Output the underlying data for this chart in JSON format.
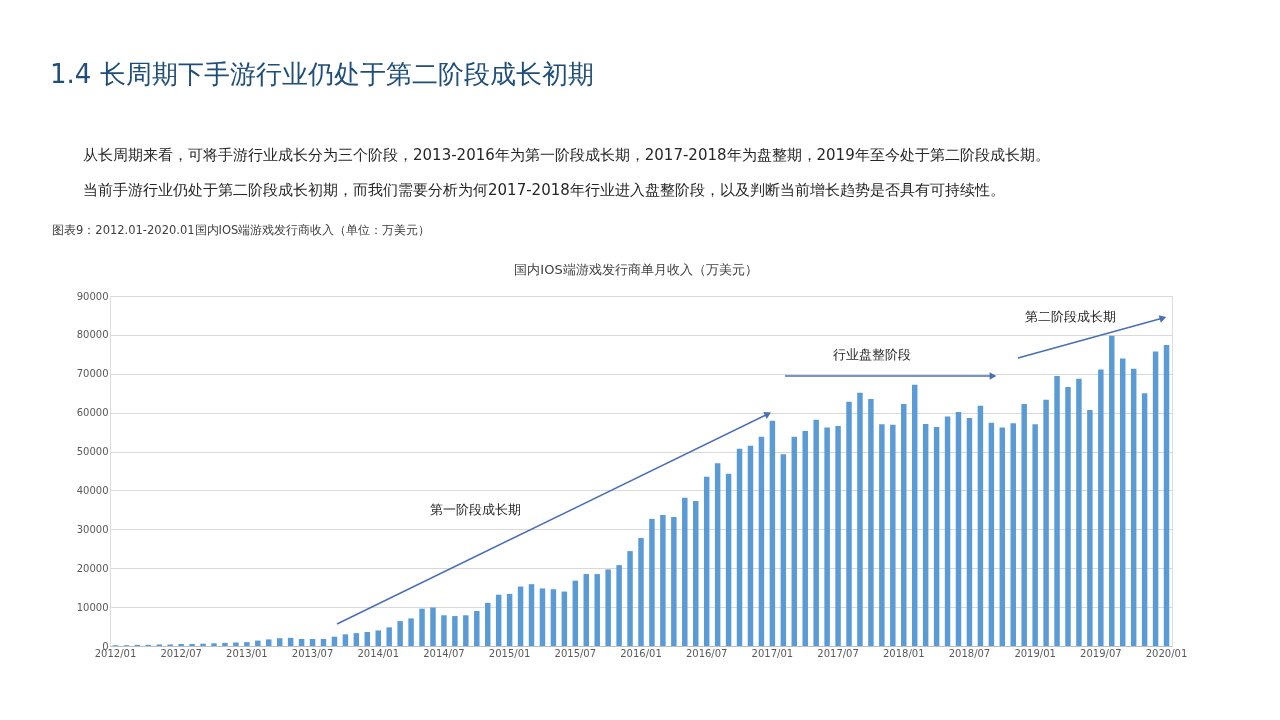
{
  "chart_data": {
    "type": "bar",
    "title": "国内IOS端游戏发行商单月收入（万美元）",
    "categories": [
      "2012/01",
      null,
      null,
      null,
      null,
      null,
      "2012/07",
      null,
      null,
      null,
      null,
      null,
      "2013/01",
      null,
      null,
      null,
      null,
      null,
      "2013/07",
      null,
      null,
      null,
      null,
      null,
      "2014/01",
      null,
      null,
      null,
      null,
      null,
      "2014/07",
      null,
      null,
      null,
      null,
      null,
      "2015/01",
      null,
      null,
      null,
      null,
      null,
      "2015/07",
      null,
      null,
      null,
      null,
      null,
      "2016/01",
      null,
      null,
      null,
      null,
      null,
      "2016/07",
      null,
      null,
      null,
      null,
      null,
      "2017/01",
      null,
      null,
      null,
      null,
      null,
      "2017/07",
      null,
      null,
      null,
      null,
      null,
      "2018/01",
      null,
      null,
      null,
      null,
      null,
      "2018/07",
      null,
      null,
      null,
      null,
      null,
      "2019/01",
      null,
      null,
      null,
      null,
      null,
      "2019/07",
      null,
      null,
      null,
      null,
      null,
      "2020/01"
    ],
    "values": [
      200,
      200,
      300,
      300,
      400,
      400,
      500,
      500,
      600,
      700,
      800,
      900,
      1000,
      1400,
      1700,
      2000,
      2100,
      1800,
      1800,
      1800,
      2400,
      3000,
      3300,
      3600,
      4000,
      4800,
      6400,
      7100,
      9600,
      9900,
      7900,
      7700,
      7900,
      9000,
      11100,
      13200,
      13400,
      15300,
      15900,
      14800,
      14600,
      14000,
      16800,
      18500,
      18500,
      19700,
      20800,
      24400,
      27800,
      32700,
      33700,
      33200,
      38100,
      37300,
      43500,
      47000,
      44300,
      50700,
      51500,
      53800,
      57900,
      49300,
      53800,
      55300,
      58200,
      56200,
      56600,
      62800,
      65100,
      63500,
      57000,
      56900,
      62200,
      67200,
      57100,
      56300,
      59000,
      60200,
      58600,
      61800,
      57400,
      56200,
      57300,
      62200,
      57000,
      63300,
      69400,
      66600,
      68700,
      60700,
      71100,
      79800,
      73900,
      71300,
      65000,
      75700,
      77400
    ],
    "color": "#5b9bd5",
    "ylim": [
      0,
      90000
    ],
    "yticks": [
      0,
      10000,
      20000,
      30000,
      40000,
      50000,
      60000,
      70000,
      80000,
      90000
    ],
    "grid": "y",
    "annotations": [
      "1.4 长周期下手游行业仍处于第二阶段成长初期",
      "从长周期来看，可将手游行业成长分为三个阶段，2013-2016年为第一阶段成长期，2017-2018年为盘整期，2019年至今处于第二阶段成长期。",
      "当前手游行业仍处于第二阶段成长初期，而我们需要分析为何2017-2018年行业进入盘整阶段，以及判断当前增长趋势是否具有可持续性。",
      "图表9：2012.01-2020.01国内IOS端游戏发行商收入（单位：万美元）",
      "第一阶段成长期",
      "行业盘整阶段",
      "第二阶段成长期"
    ]
  }
}
